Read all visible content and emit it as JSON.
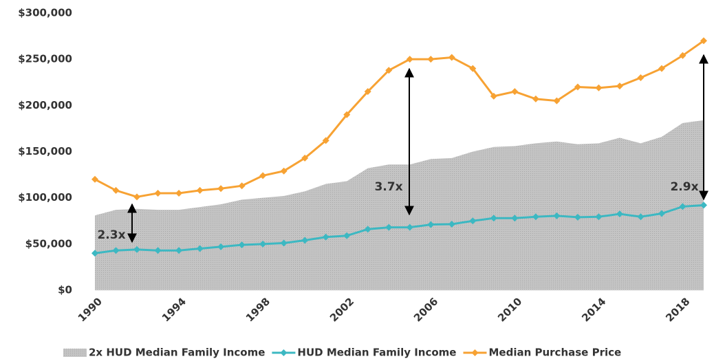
{
  "chart_data": {
    "type": "line",
    "x": [
      1990,
      1991,
      1992,
      1993,
      1994,
      1995,
      1996,
      1997,
      1998,
      1999,
      2000,
      2001,
      2002,
      2003,
      2004,
      2005,
      2006,
      2007,
      2008,
      2009,
      2010,
      2011,
      2012,
      2013,
      2014,
      2015,
      2016,
      2017,
      2018,
      2019
    ],
    "series": [
      {
        "name": "2x HUD Median Family Income",
        "kind": "area",
        "color": "#c4c4c4",
        "values": [
          81000,
          87000,
          88000,
          87000,
          87000,
          90000,
          93000,
          98000,
          100000,
          102000,
          107000,
          115000,
          118000,
          132000,
          136000,
          136000,
          142000,
          143000,
          150000,
          155000,
          156000,
          159000,
          161000,
          158000,
          159000,
          165000,
          159000,
          166000,
          181000,
          184000
        ]
      },
      {
        "name": "HUD Median Family Income",
        "kind": "line",
        "color": "#3cb8c2",
        "values": [
          40000,
          43000,
          44000,
          43000,
          43000,
          45000,
          47000,
          49000,
          50000,
          51000,
          54000,
          57500,
          59000,
          66000,
          68000,
          68000,
          71000,
          71500,
          75000,
          78000,
          78000,
          79500,
          80500,
          79000,
          79500,
          82500,
          79500,
          83000,
          90500,
          92000
        ]
      },
      {
        "name": "Median Purchase Price",
        "kind": "line",
        "color": "#f7a233",
        "values": [
          120000,
          108000,
          101000,
          105000,
          105000,
          108000,
          110000,
          113000,
          124000,
          129000,
          143000,
          162000,
          190000,
          215000,
          238000,
          250000,
          250000,
          252000,
          240000,
          210000,
          215000,
          207000,
          205000,
          220000,
          219000,
          221000,
          230000,
          240000,
          254000,
          270000
        ]
      }
    ],
    "xlim": [
      1990,
      2019
    ],
    "xticks": [
      1990,
      1994,
      1998,
      2002,
      2006,
      2010,
      2014,
      2018
    ],
    "ylim": [
      0,
      300000
    ],
    "yticks": [
      {
        "value": 0,
        "label": "$0"
      },
      {
        "value": 50000,
        "label": "$50,000"
      },
      {
        "value": 100000,
        "label": "$100,000"
      },
      {
        "value": 150000,
        "label": "$150,000"
      },
      {
        "value": 200000,
        "label": "$200,000"
      },
      {
        "value": 250000,
        "label": "$250,000"
      },
      {
        "value": 300000,
        "label": "$300,000"
      }
    ],
    "grid": false,
    "legend": "bottom",
    "annotations": [
      "2.3x",
      "3.7x",
      "2.9x"
    ]
  }
}
